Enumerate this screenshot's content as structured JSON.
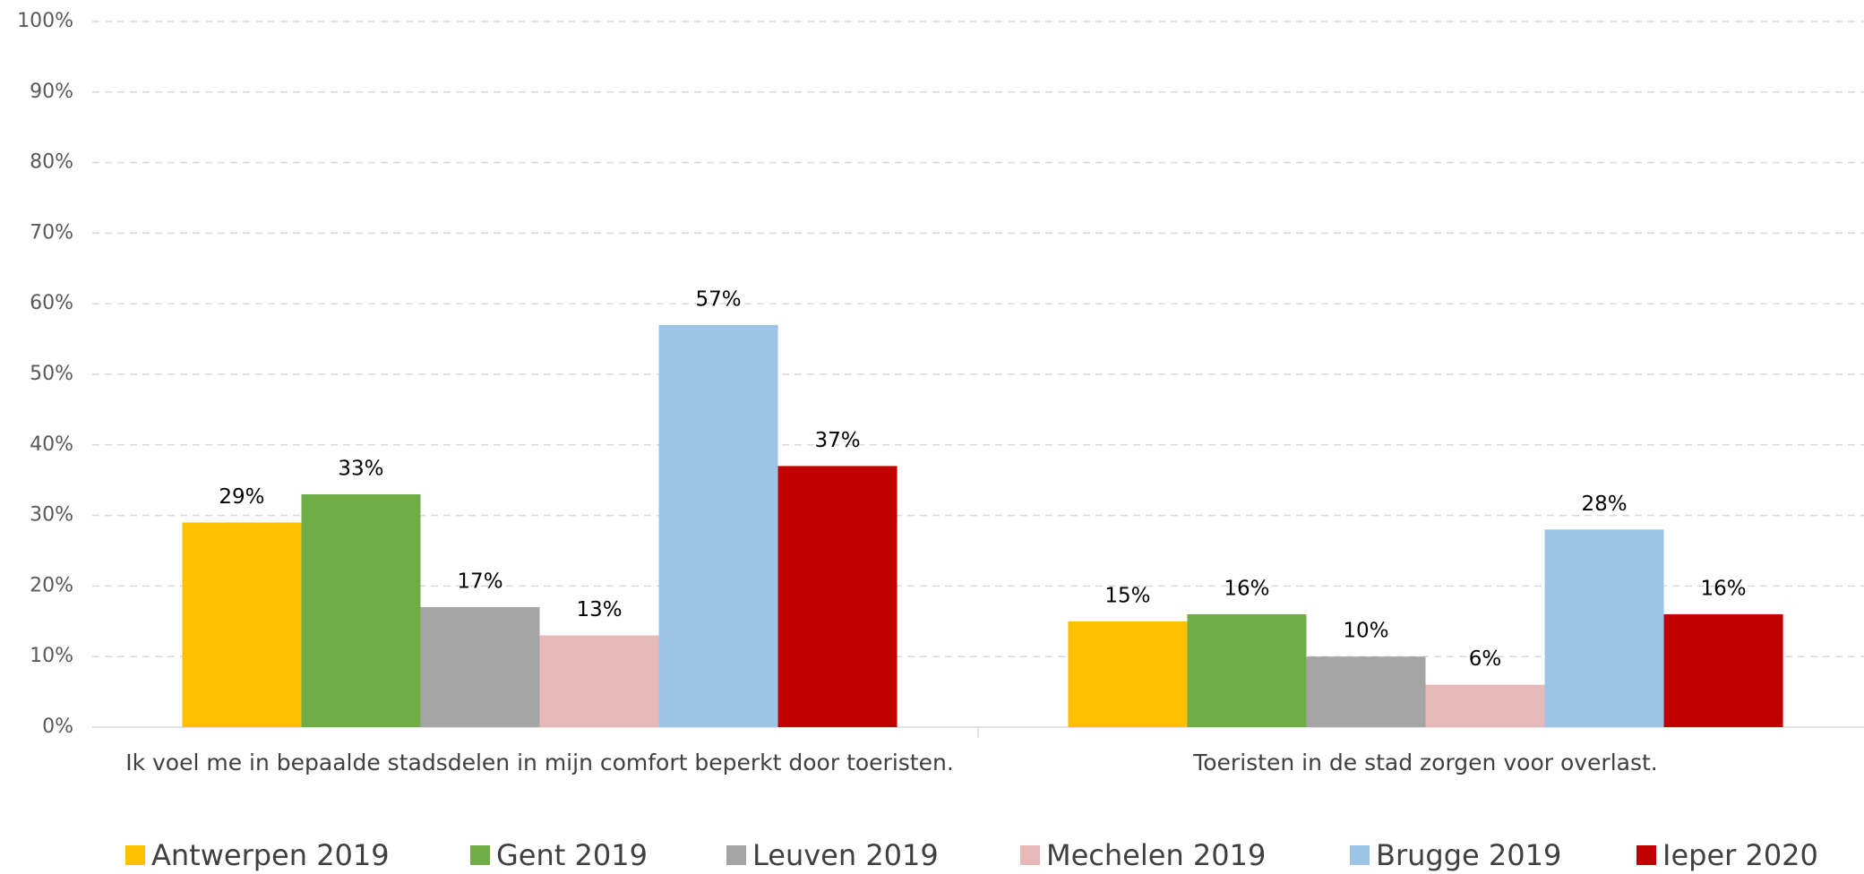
{
  "chart_data": {
    "type": "bar",
    "categories": [
      "Ik voel me in bepaalde stadsdelen in mijn comfort beperkt door toeristen.",
      "Toeristen in de stad zorgen voor overlast."
    ],
    "series": [
      {
        "name": "Antwerpen 2019",
        "color": "#FFC000",
        "values": [
          29,
          15
        ],
        "value_labels": [
          "29%",
          "15%"
        ]
      },
      {
        "name": "Gent 2019",
        "color": "#70AD47",
        "values": [
          33,
          16
        ],
        "value_labels": [
          "33%",
          "16%"
        ]
      },
      {
        "name": "Leuven 2019",
        "color": "#A5A5A5",
        "values": [
          17,
          10
        ],
        "value_labels": [
          "17%",
          "10%"
        ]
      },
      {
        "name": "Mechelen 2019",
        "color": "#E6B9B8",
        "values": [
          13,
          6
        ],
        "value_labels": [
          "13%",
          "6%"
        ]
      },
      {
        "name": "Brugge 2019",
        "color": "#9DC3E6",
        "values": [
          57,
          28
        ],
        "value_labels": [
          "57%",
          "28%"
        ]
      },
      {
        "name": "Ieper 2020",
        "color": "#C00000",
        "values": [
          37,
          16
        ],
        "value_labels": [
          "37%",
          "16%"
        ]
      }
    ],
    "ylim": [
      0,
      100
    ],
    "yticks": [
      {
        "value": 0,
        "label": "0%"
      },
      {
        "value": 10,
        "label": "10%"
      },
      {
        "value": 20,
        "label": "20%"
      },
      {
        "value": 30,
        "label": "30%"
      },
      {
        "value": 40,
        "label": "40%"
      },
      {
        "value": 50,
        "label": "50%"
      },
      {
        "value": 60,
        "label": "60%"
      },
      {
        "value": 70,
        "label": "70%"
      },
      {
        "value": 80,
        "label": "80%"
      },
      {
        "value": 90,
        "label": "90%"
      },
      {
        "value": 100,
        "label": "100%"
      }
    ],
    "grid": true,
    "legend": "bottom"
  }
}
